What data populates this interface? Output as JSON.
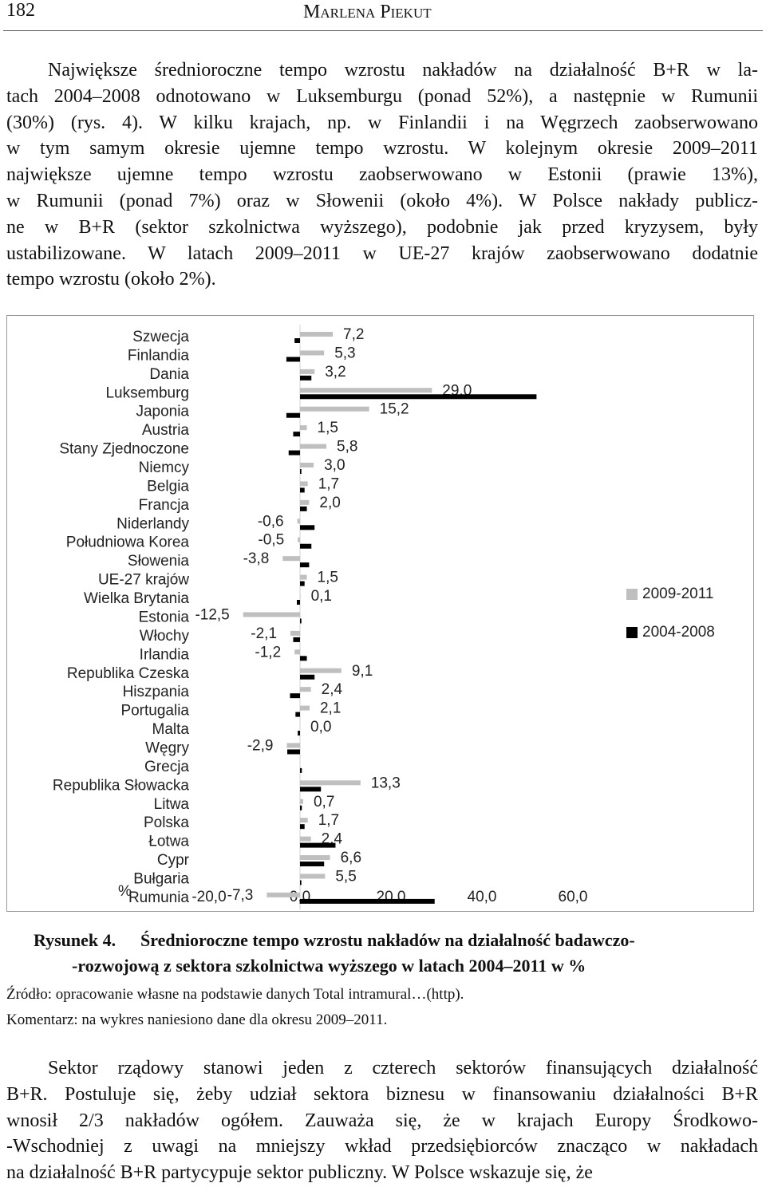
{
  "header": {
    "page_number": "182",
    "author": "Marlena Piekut"
  },
  "paragraph_1": [
    "Największe średnioroczne tempo wzrostu nakładów na działalność B+R w la-",
    "tach 2004–2008 odnotowano w Luksemburgu (ponad 52%), a następnie w Rumunii",
    "(30%) (rys. 4). W kilku krajach, np. w Finlandii i na Węgrzech zaobserwowano",
    "w tym samym okresie ujemne tempo wzrostu. W kolejnym okresie 2009–2011",
    "największe ujemne tempo wzrostu zaobserwowano w Estonii (prawie 13%),",
    "w Rumunii (ponad 7%) oraz w Słowenii (około 4%). W Polsce nakłady publicz-",
    "ne w B+R (sektor szkolnictwa wyższego), podobnie jak przed kryzysem, były",
    "ustabilizowane. W latach 2009–2011 w UE-27 krajów zaobserwowano dodatnie",
    "tempo wzrostu (około 2%)."
  ],
  "chart_data": {
    "type": "hbar",
    "x_label": "%",
    "categories": [
      "Szwecja",
      "Finlandia",
      "Dania",
      "Luksemburg",
      "Japonia",
      "Austria",
      "Stany Zjednoczone",
      "Niemcy",
      "Belgia",
      "Francja",
      "Niderlandy",
      "Południowa Korea",
      "Słowenia",
      "UE-27 krajów",
      "Wielka Brytania",
      "Estonia",
      "Włochy",
      "Irlandia",
      "Republika Czeska",
      "Hiszpania",
      "Portugalia",
      "Malta",
      "Węgry",
      "Grecja",
      "Republika Słowacka",
      "Litwa",
      "Polska",
      "Łotwa",
      "Cypr",
      "Bułgaria",
      "Rumunia"
    ],
    "series": [
      {
        "name": "2009-2011",
        "color": "#bfbfbf",
        "values": [
          7.2,
          5.3,
          3.2,
          29.0,
          15.2,
          1.5,
          5.8,
          3.0,
          1.7,
          2.0,
          -0.6,
          -0.5,
          -3.8,
          1.5,
          0.1,
          -12.5,
          -2.1,
          -1.2,
          9.1,
          2.4,
          2.1,
          0.0,
          -2.9,
          null,
          13.3,
          0.7,
          1.7,
          2.4,
          6.6,
          5.5,
          -7.3
        ],
        "value_labels": [
          "7,2",
          "5,3",
          "3,2",
          "29,0",
          "15,2",
          "1,5",
          "5,8",
          "3,0",
          "1,7",
          "2,0",
          "-0,6",
          "-0,5",
          "-3,8",
          "1,5",
          "0,1",
          "-12,5",
          "-2,1",
          "-1,2",
          "9,1",
          "2,4",
          "2,1",
          "0,0",
          "-2,9",
          null,
          "13,3",
          "0,7",
          "1,7",
          "2,4",
          "6,6",
          "5,5",
          "-7,3"
        ]
      },
      {
        "name": "2004-2008",
        "color": "#000000",
        "values": [
          -1.2,
          -3.0,
          2.5,
          52.0,
          -3.0,
          -1.5,
          -2.5,
          0.3,
          1.0,
          1.5,
          3.2,
          2.5,
          2.0,
          1.0,
          -0.7,
          0.3,
          -1.5,
          1.5,
          3.2,
          -2.2,
          -1.0,
          -0.5,
          -2.8,
          0.4,
          4.6,
          0.4,
          1.0,
          7.8,
          5.3,
          0.3,
          29.6
        ]
      }
    ],
    "xlim": [
      -20,
      60
    ],
    "xticks": [
      {
        "value": -20,
        "label": "-20,0"
      },
      {
        "value": 0,
        "label": "0,0"
      },
      {
        "value": 20,
        "label": "20,0"
      },
      {
        "value": 40,
        "label": "40,0"
      },
      {
        "value": 60,
        "label": "60,0"
      }
    ],
    "legend": "right"
  },
  "caption": {
    "label": "Rysunek 4.",
    "lines": [
      "Średnioroczne tempo wzrostu nakładów na działalność badawczo-",
      "-rozwojową z sektora szkolnictwa wyższego w latach 2004–2011 w %"
    ]
  },
  "source": "Źródło: opracowanie własne na podstawie danych Total intramural…(http).",
  "comment": "Komentarz: na wykres naniesiono dane dla okresu 2009–2011.",
  "paragraph_2": [
    "Sektor rządowy stanowi jeden z czterech sektorów finansujących działalność",
    "B+R. Postuluje się, żeby udział sektora biznesu w finansowaniu działalności B+R",
    "wnosił 2/3 nakładów ogółem. Zauważa się, że w krajach Europy Środkowo-",
    "-Wschodniej z uwagi na mniejszy wkład przedsiębiorców znacząco w nakładach",
    "na działalność B+R partycypuje sektor publiczny. W Polsce wskazuje się, że"
  ]
}
